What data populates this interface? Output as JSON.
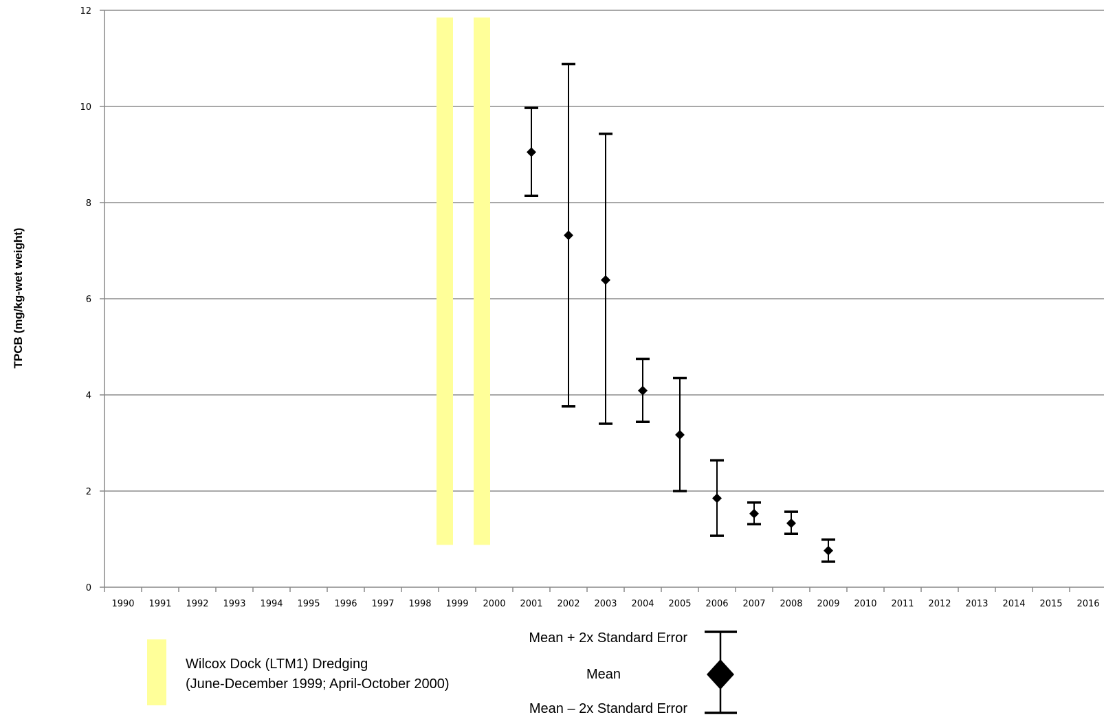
{
  "chart_data": {
    "type": "scatter",
    "ylabel": "TPCB (mg/kg-wet weight)",
    "xlabel": "",
    "title": "",
    "ylim": [
      0,
      12
    ],
    "yticks": [
      "0",
      "2",
      "4",
      "6",
      "8",
      "10",
      "12"
    ],
    "categories": [
      "1990",
      "1991",
      "1992",
      "1993",
      "1994",
      "1995",
      "1996",
      "1997",
      "1998",
      "1999",
      "2000",
      "2001",
      "2002",
      "2003",
      "2004",
      "2005",
      "2006",
      "2007",
      "2008",
      "2009",
      "2010",
      "2011",
      "2012",
      "2013",
      "2014",
      "2015",
      "2016"
    ],
    "series": [
      {
        "points": [
          {
            "year": "2001",
            "mean": 9.05,
            "upper": 9.97,
            "lower": 8.14
          },
          {
            "year": "2002",
            "mean": 7.32,
            "upper": 10.88,
            "lower": 3.76
          },
          {
            "year": "2003",
            "mean": 6.39,
            "upper": 9.43,
            "lower": 3.4
          },
          {
            "year": "2004",
            "mean": 4.09,
            "upper": 4.75,
            "lower": 3.44
          },
          {
            "year": "2005",
            "mean": 3.17,
            "upper": 4.35,
            "lower": 2.0
          },
          {
            "year": "2006",
            "mean": 1.85,
            "upper": 2.64,
            "lower": 1.07
          },
          {
            "year": "2007",
            "mean": 1.53,
            "upper": 1.76,
            "lower": 1.31
          },
          {
            "year": "2008",
            "mean": 1.33,
            "upper": 1.57,
            "lower": 1.11
          },
          {
            "year": "2009",
            "mean": 0.76,
            "upper": 0.99,
            "lower": 0.53
          }
        ]
      }
    ],
    "shaded_periods": [
      {
        "year": "1999",
        "from": 0.88,
        "to": 11.85
      },
      {
        "year": "2000",
        "from": 0.88,
        "to": 11.85
      }
    ],
    "grid": true,
    "colors": {
      "marker": "#000000",
      "dredging": "#ffff99",
      "grid": "#8c8c8c"
    },
    "legend": {
      "dredging_line1": "Wilcox Dock (LTM1) Dredging",
      "dredging_line2": "(June-December 1999; April-October 2000)",
      "upper_label": "Mean + 2x Standard Error",
      "mean_label": "Mean",
      "lower_label": "Mean – 2x Standard Error"
    }
  }
}
